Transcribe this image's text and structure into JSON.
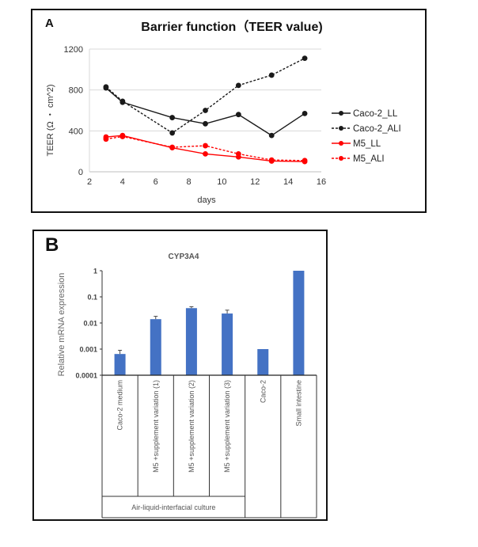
{
  "chart_data": [
    {
      "panel": "A",
      "type": "line",
      "title": "Barrier function（TEER value)",
      "xlabel": "days",
      "ylabel": "TEER (Ω ・ cm^2)",
      "xlim": [
        2,
        16
      ],
      "ylim": [
        0,
        1200
      ],
      "xticks": [
        2,
        4,
        6,
        8,
        10,
        12,
        14,
        16
      ],
      "yticks": [
        0,
        400,
        800,
        1200
      ],
      "grid": "horizontal",
      "legend_position": "right",
      "x": [
        3,
        4,
        7,
        9,
        11,
        13,
        15
      ],
      "series": [
        {
          "name": "Caco-2_LL",
          "color": "#1a1a1a",
          "dash": "solid",
          "values": [
            820,
            680,
            530,
            470,
            560,
            355,
            570
          ]
        },
        {
          "name": "Caco-2_ALI",
          "color": "#1a1a1a",
          "dash": "dashed",
          "values": [
            830,
            690,
            380,
            600,
            845,
            945,
            1110
          ]
        },
        {
          "name": "M5_LL",
          "color": "#ff0000",
          "dash": "solid",
          "values": [
            340,
            355,
            235,
            175,
            145,
            105,
            100
          ]
        },
        {
          "name": "M5_ALI",
          "color": "#ff0000",
          "dash": "dashed",
          "values": [
            320,
            345,
            240,
            255,
            175,
            115,
            110
          ]
        }
      ]
    },
    {
      "panel": "B",
      "type": "bar",
      "title": "CYP3A4",
      "ylabel": "Relative mRNA expression",
      "yscale": "log",
      "ylim": [
        0.0001,
        1
      ],
      "yticks": [
        "1",
        "0.1",
        "0.01",
        "0.001",
        "0.0001"
      ],
      "ytick_values": [
        1,
        0.1,
        0.01,
        0.001,
        0.0001
      ],
      "bar_color": "#4472c4",
      "categories": [
        "Caco-2 medium",
        "M5 +supplement variation (1)",
        "M5 +supplement variation (2)",
        "M5 +supplement variation (3)",
        "Caco-2",
        "Small intestine"
      ],
      "values": [
        0.00065,
        0.014,
        0.037,
        0.023,
        0.001,
        1
      ],
      "error_upper": [
        0.0009,
        0.018,
        0.042,
        0.031,
        null,
        null
      ],
      "group_label": "Air-liquid-interfacial culture",
      "group_span": [
        0,
        3
      ]
    }
  ],
  "panels": {
    "a_letter": "A",
    "b_letter": "B"
  }
}
